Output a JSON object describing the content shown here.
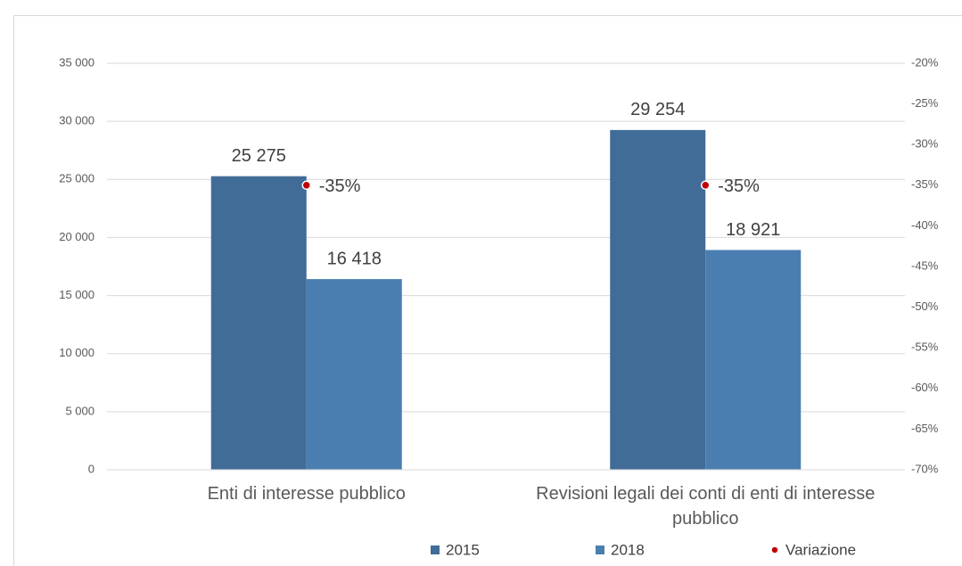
{
  "chart_data": {
    "type": "bar",
    "categories": [
      "Enti di interesse pubblico",
      "Revisioni legali dei conti di enti di interesse pubblico"
    ],
    "series": [
      {
        "name": "2015",
        "color": "#416c97",
        "values": [
          25275,
          29254
        ],
        "value_labels": [
          "25 275",
          "29 254"
        ]
      },
      {
        "name": "2018",
        "color": "#4a7eb0",
        "values": [
          16418,
          18921
        ],
        "value_labels": [
          "16 418",
          "18 921"
        ]
      },
      {
        "name": "Variazione",
        "type": "scatter",
        "axis": "y2",
        "color": "#c00000",
        "values": [
          -35,
          -35
        ],
        "value_labels": [
          "-35%",
          "-35%"
        ]
      }
    ],
    "ylim": [
      0,
      35000
    ],
    "yticks": [
      0,
      {
        "value": 5000,
        "label": "5 000"
      },
      {
        "value": 10000,
        "label": "10 000"
      },
      {
        "value": 15000,
        "label": "15 000"
      },
      {
        "value": 20000,
        "label": "20 000"
      },
      {
        "value": 25000,
        "label": "25 000"
      },
      {
        "value": 30000,
        "label": "30 000"
      },
      {
        "value": 35000,
        "label": "35 000"
      }
    ],
    "y2lim": [
      -70,
      -20
    ],
    "y2ticks": [
      {
        "value": -70,
        "label": "-70%"
      },
      {
        "value": -65,
        "label": "-65%"
      },
      {
        "value": -60,
        "label": "-60%"
      },
      {
        "value": -55,
        "label": "-55%"
      },
      {
        "value": -50,
        "label": "-50%"
      },
      {
        "value": -45,
        "label": "-45%"
      },
      {
        "value": -40,
        "label": "-40%"
      },
      {
        "value": -35,
        "label": "-35%"
      },
      {
        "value": -30,
        "label": "-30%"
      },
      {
        "value": -25,
        "label": "-25%"
      },
      {
        "value": -20,
        "label": "-20%"
      }
    ],
    "grid": true,
    "legend": "bottom"
  }
}
